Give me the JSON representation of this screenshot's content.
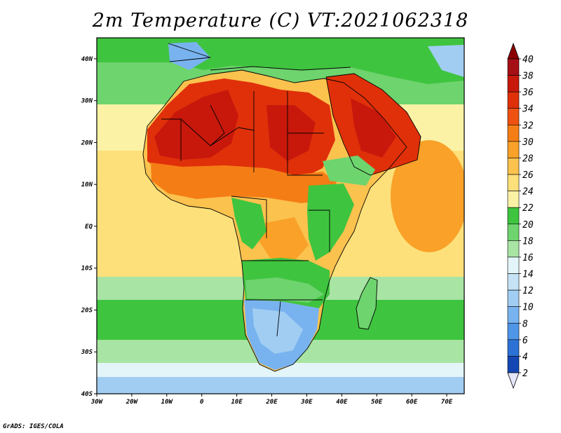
{
  "title": "2m Temperature (C) VT:2021062318",
  "credit": "GrADS: IGES/COLA",
  "map": {
    "lon_range": [
      -30,
      75
    ],
    "lat_range": [
      -40,
      45
    ],
    "lat_ticks": [
      {
        "value": 40,
        "label": "40N"
      },
      {
        "value": 30,
        "label": "30N"
      },
      {
        "value": 20,
        "label": "20N"
      },
      {
        "value": 10,
        "label": "10N"
      },
      {
        "value": 0,
        "label": "EQ"
      },
      {
        "value": -10,
        "label": "10S"
      },
      {
        "value": -20,
        "label": "20S"
      },
      {
        "value": -30,
        "label": "30S"
      },
      {
        "value": -40,
        "label": "40S"
      }
    ],
    "lon_ticks": [
      {
        "value": -30,
        "label": "30W"
      },
      {
        "value": -20,
        "label": "20W"
      },
      {
        "value": -10,
        "label": "10W"
      },
      {
        "value": 0,
        "label": "0"
      },
      {
        "value": 10,
        "label": "10E"
      },
      {
        "value": 20,
        "label": "20E"
      },
      {
        "value": 30,
        "label": "30E"
      },
      {
        "value": 40,
        "label": "40E"
      },
      {
        "value": 50,
        "label": "50E"
      },
      {
        "value": 60,
        "label": "60E"
      },
      {
        "value": 70,
        "label": "70E"
      }
    ]
  },
  "colorbar": {
    "labels": [
      "40",
      "38",
      "36",
      "34",
      "32",
      "30",
      "28",
      "26",
      "24",
      "22",
      "20",
      "18",
      "16",
      "14",
      "12",
      "10",
      "8",
      "6",
      "4",
      "2"
    ],
    "colors": [
      "#a50f15",
      "#c8180c",
      "#e0300a",
      "#ef5210",
      "#f57d16",
      "#f9a128",
      "#fbc24e",
      "#fde07a",
      "#fbf2a6",
      "#3fc43f",
      "#6ed46e",
      "#a8e4a3",
      "#e3f5f8",
      "#c6e3f5",
      "#a2cdf3",
      "#78b3ef",
      "#4f95e8",
      "#2c72d6",
      "#1547b4",
      "#0b1f7c"
    ],
    "top_arrow_color": "#8b0000",
    "bottom_arrow_color": "#e6e6fa"
  }
}
